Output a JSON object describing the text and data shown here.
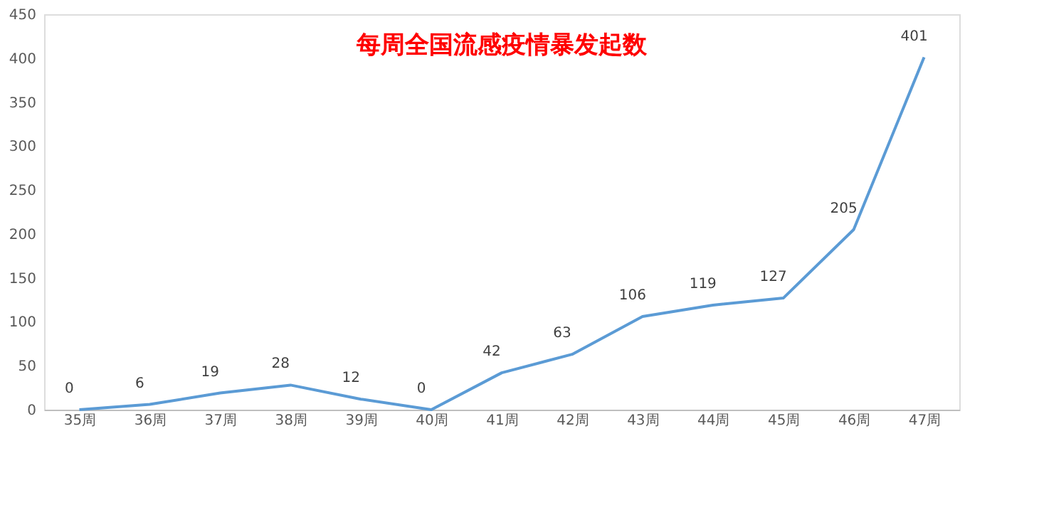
{
  "chart_data": {
    "type": "line",
    "title": "每周全国流感疫情暴发起数",
    "categories": [
      "35周",
      "36周",
      "37周",
      "38周",
      "39周",
      "40周",
      "41周",
      "42周",
      "43周",
      "44周",
      "45周",
      "46周",
      "47周"
    ],
    "series": [
      {
        "color": "#5b9bd5",
        "values": [
          0,
          6,
          19,
          28,
          12,
          0,
          42,
          63,
          106,
          119,
          127,
          205,
          401
        ]
      }
    ],
    "ylim": [
      0,
      450
    ],
    "yticks": [
      0,
      50,
      100,
      150,
      200,
      250,
      300,
      350,
      400,
      450
    ],
    "data_labels": true,
    "grid": false,
    "legend": false,
    "marker": "none",
    "line_style": "solid"
  }
}
